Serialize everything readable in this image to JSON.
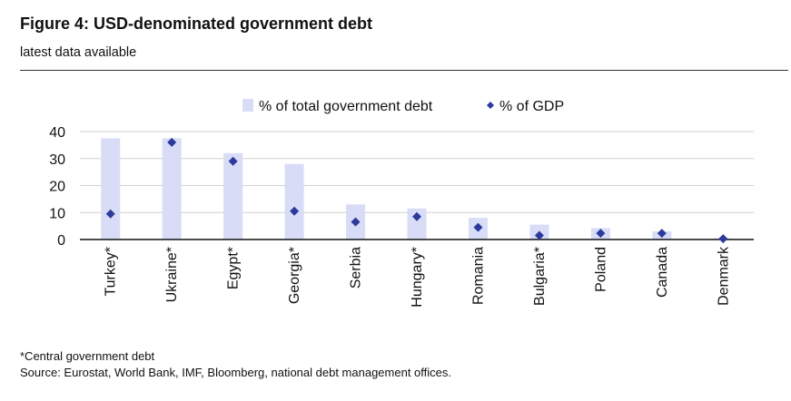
{
  "header": {
    "title": "Figure 4: USD-denominated government debt",
    "subtitle": "latest data available"
  },
  "footer": {
    "note": "*Central government debt",
    "source": "Source: Eurostat, World Bank, IMF, Bloomberg, national debt management offices."
  },
  "chart_data": {
    "type": "bar",
    "categories": [
      "Turkey*",
      "Ukraine*",
      "Egypt*",
      "Georgia*",
      "Serbia",
      "Hungary*",
      "Romania",
      "Bulgaria*",
      "Poland",
      "Canada",
      "Denmark"
    ],
    "series": [
      {
        "name": "% of total government debt",
        "kind": "bar",
        "color": "#d8dcf6",
        "values": [
          37.5,
          37.5,
          32,
          28,
          13,
          11.5,
          8,
          5.5,
          4.2,
          3,
          0.5
        ]
      },
      {
        "name": "% of GDP",
        "kind": "marker",
        "marker": "diamond",
        "color": "#2b3a9c",
        "values": [
          9.5,
          36,
          29,
          10.5,
          6.5,
          8.5,
          4.5,
          1.5,
          2.3,
          2.3,
          0.3
        ]
      }
    ],
    "ylim": [
      0,
      40
    ],
    "yticks": [
      0,
      10,
      20,
      30,
      40
    ],
    "grid": true,
    "legend_position": "top",
    "xlabel": "",
    "ylabel": ""
  }
}
